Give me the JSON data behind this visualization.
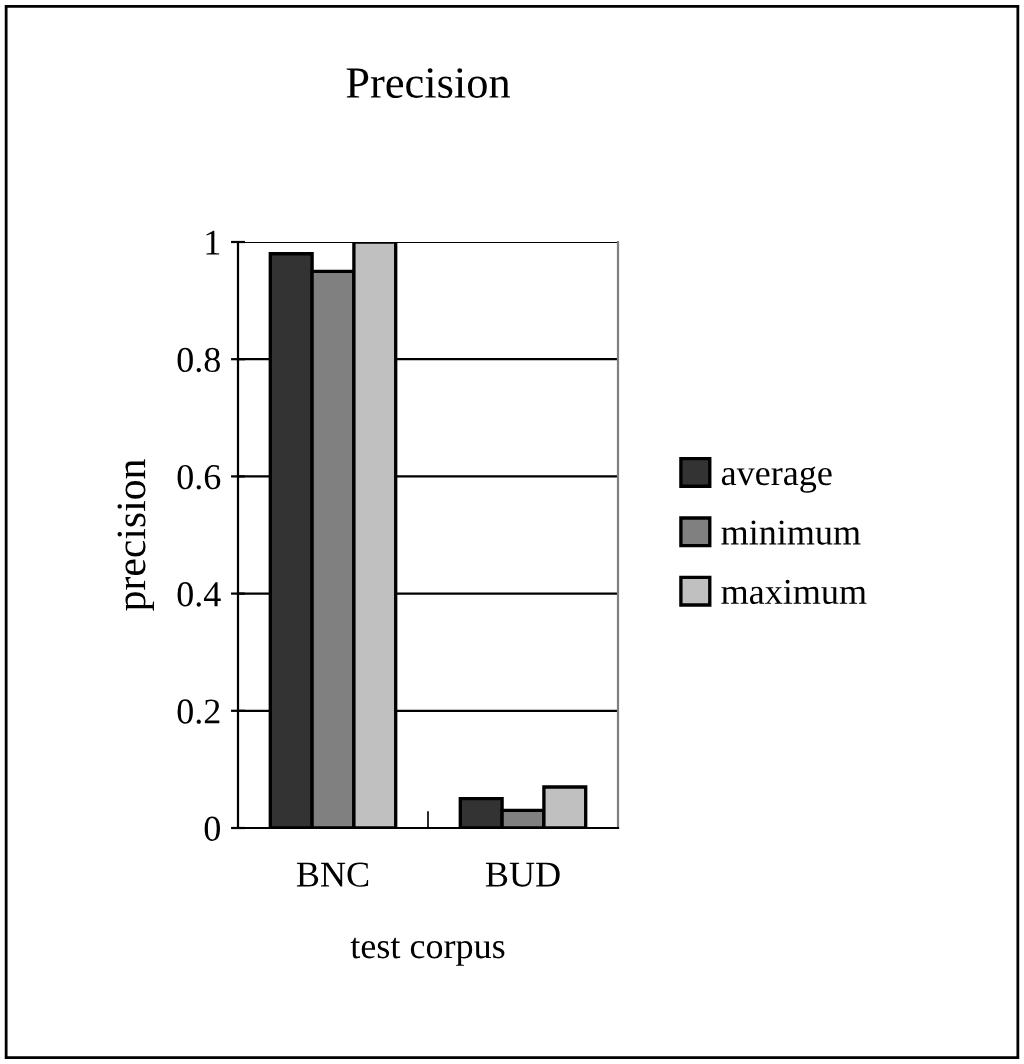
{
  "chart_data": {
    "type": "bar",
    "title": "Precision",
    "xlabel": "test corpus",
    "ylabel": "precision",
    "categories": [
      "BNC",
      "BUD"
    ],
    "series": [
      {
        "name": "average",
        "color": "#333333",
        "values": [
          0.98,
          0.05
        ]
      },
      {
        "name": "minimum",
        "color": "#808080",
        "values": [
          0.95,
          0.03
        ]
      },
      {
        "name": "maximum",
        "color": "#c0c0c0",
        "values": [
          1.0,
          0.07
        ]
      }
    ],
    "ylim": [
      0,
      1
    ],
    "yticks": [
      0,
      0.2,
      0.4,
      0.6,
      0.8,
      1
    ],
    "grid": "y",
    "legend": "right"
  }
}
